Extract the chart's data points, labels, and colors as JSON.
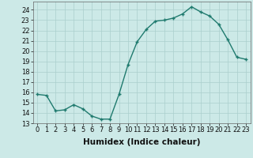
{
  "x": [
    0,
    1,
    2,
    3,
    4,
    5,
    6,
    7,
    8,
    9,
    10,
    11,
    12,
    13,
    14,
    15,
    16,
    17,
    18,
    19,
    20,
    21,
    22,
    23
  ],
  "y": [
    15.8,
    15.7,
    14.2,
    14.3,
    14.8,
    14.4,
    13.7,
    13.4,
    13.4,
    15.8,
    18.7,
    20.9,
    22.1,
    22.9,
    23.0,
    23.2,
    23.6,
    24.3,
    23.8,
    23.4,
    22.6,
    21.1,
    19.4,
    19.2
  ],
  "xlabel": "Humidex (Indice chaleur)",
  "line_color": "#1f7a6e",
  "marker": "+",
  "bg_color": "#cce9e7",
  "grid_color": "#aacfcd",
  "xlim": [
    -0.5,
    23.5
  ],
  "ylim": [
    13,
    24.8
  ],
  "yticks": [
    13,
    14,
    15,
    16,
    17,
    18,
    19,
    20,
    21,
    22,
    23,
    24
  ],
  "xticks": [
    0,
    1,
    2,
    3,
    4,
    5,
    6,
    7,
    8,
    9,
    10,
    11,
    12,
    13,
    14,
    15,
    16,
    17,
    18,
    19,
    20,
    21,
    22,
    23
  ],
  "xtick_labels": [
    "0",
    "1",
    "2",
    "3",
    "4",
    "5",
    "6",
    "7",
    "8",
    "9",
    "10",
    "11",
    "12",
    "13",
    "14",
    "15",
    "16",
    "17",
    "18",
    "19",
    "20",
    "21",
    "22",
    "23"
  ],
  "xlabel_fontsize": 7.5,
  "tick_fontsize": 6.0,
  "linewidth": 1.0,
  "markersize": 3.5,
  "markeredgewidth": 1.0
}
